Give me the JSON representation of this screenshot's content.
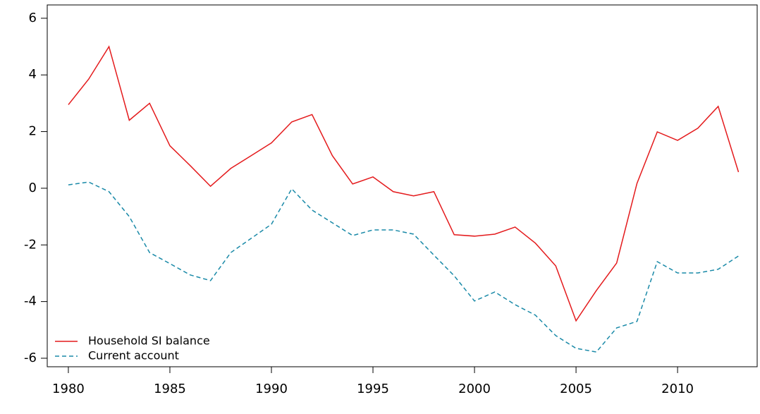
{
  "chart_data": {
    "type": "line",
    "x": [
      1980,
      1981,
      1982,
      1983,
      1984,
      1985,
      1986,
      1987,
      1988,
      1989,
      1990,
      1991,
      1992,
      1993,
      1994,
      1995,
      1996,
      1997,
      1998,
      1999,
      2000,
      2001,
      2002,
      2003,
      2004,
      2005,
      2006,
      2007,
      2008,
      2009,
      2010,
      2011,
      2012,
      2013
    ],
    "series": [
      {
        "name": "Household SI balance",
        "color": "#e41a1c",
        "linestyle": "solid",
        "values": [
          2.95,
          3.85,
          5.0,
          2.4,
          3.0,
          1.5,
          0.8,
          0.07,
          0.7,
          1.15,
          1.6,
          2.34,
          2.6,
          1.15,
          0.15,
          0.4,
          -0.12,
          -0.27,
          -0.12,
          -1.64,
          -1.69,
          -1.62,
          -1.37,
          -1.94,
          -2.74,
          -4.68,
          -3.61,
          -2.64,
          0.17,
          1.99,
          1.69,
          2.12,
          2.89,
          0.57
        ]
      },
      {
        "name": "Current account",
        "color": "#1a8aa8",
        "linestyle": "dashed",
        "values": [
          0.12,
          0.22,
          -0.12,
          -1.0,
          -2.27,
          -2.66,
          -3.06,
          -3.26,
          -2.27,
          -1.77,
          -1.27,
          -0.02,
          -0.77,
          -1.22,
          -1.67,
          -1.47,
          -1.47,
          -1.62,
          -2.36,
          -3.09,
          -3.98,
          -3.66,
          -4.11,
          -4.48,
          -5.2,
          -5.65,
          -5.78,
          -4.93,
          -4.7,
          -2.59,
          -2.99,
          -2.99,
          -2.86,
          -2.39
        ]
      }
    ],
    "xlim": [
      1978.96,
      2013.92
    ],
    "xticks": [
      1980,
      1985,
      1990,
      1995,
      2000,
      2005,
      2010
    ],
    "ylim": [
      -6.3,
      6.47
    ],
    "yticks": [
      -6,
      -4,
      -2,
      0,
      2,
      4,
      6
    ],
    "legend": "bottom-left"
  }
}
